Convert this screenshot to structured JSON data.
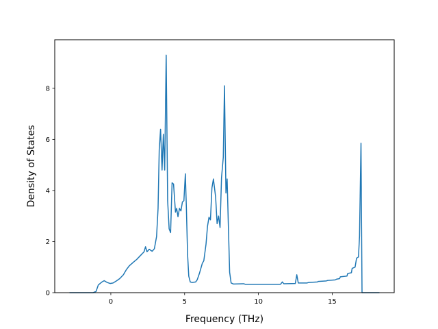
{
  "chart_data": {
    "type": "line",
    "title": "",
    "xlabel": "Frequency (THz)",
    "ylabel": "Density of States",
    "xlim": [
      -3.8,
      19.2
    ],
    "ylim": [
      0,
      9.9
    ],
    "x_ticks": [
      0,
      5,
      10,
      15
    ],
    "y_ticks": [
      0,
      2,
      4,
      6,
      8
    ],
    "grid": false,
    "legend": "none",
    "series": [
      {
        "color": "#1f77b4",
        "points": [
          [
            -2.8,
            0.0
          ],
          [
            -1.2,
            0.0
          ],
          [
            -1.0,
            0.05
          ],
          [
            -0.85,
            0.3
          ],
          [
            -0.6,
            0.42
          ],
          [
            -0.45,
            0.47
          ],
          [
            -0.25,
            0.4
          ],
          [
            -0.05,
            0.36
          ],
          [
            0.15,
            0.38
          ],
          [
            0.35,
            0.45
          ],
          [
            0.6,
            0.55
          ],
          [
            0.85,
            0.7
          ],
          [
            1.05,
            0.9
          ],
          [
            1.25,
            1.05
          ],
          [
            1.5,
            1.18
          ],
          [
            1.75,
            1.3
          ],
          [
            2.0,
            1.45
          ],
          [
            2.25,
            1.6
          ],
          [
            2.35,
            1.8
          ],
          [
            2.45,
            1.6
          ],
          [
            2.6,
            1.7
          ],
          [
            2.8,
            1.62
          ],
          [
            2.95,
            1.72
          ],
          [
            3.1,
            2.2
          ],
          [
            3.2,
            3.3
          ],
          [
            3.28,
            5.6
          ],
          [
            3.37,
            6.4
          ],
          [
            3.47,
            4.8
          ],
          [
            3.56,
            6.2
          ],
          [
            3.65,
            4.8
          ],
          [
            3.75,
            9.3
          ],
          [
            3.85,
            3.6
          ],
          [
            3.95,
            2.5
          ],
          [
            4.05,
            2.35
          ],
          [
            4.15,
            4.3
          ],
          [
            4.25,
            4.25
          ],
          [
            4.38,
            3.15
          ],
          [
            4.46,
            3.3
          ],
          [
            4.55,
            2.97
          ],
          [
            4.65,
            3.3
          ],
          [
            4.75,
            3.2
          ],
          [
            4.85,
            3.55
          ],
          [
            4.95,
            3.6
          ],
          [
            5.05,
            4.65
          ],
          [
            5.12,
            3.3
          ],
          [
            5.2,
            1.5
          ],
          [
            5.28,
            0.65
          ],
          [
            5.38,
            0.42
          ],
          [
            5.5,
            0.4
          ],
          [
            5.75,
            0.42
          ],
          [
            5.85,
            0.5
          ],
          [
            6.0,
            0.75
          ],
          [
            6.2,
            1.15
          ],
          [
            6.3,
            1.25
          ],
          [
            6.45,
            1.9
          ],
          [
            6.55,
            2.6
          ],
          [
            6.65,
            2.95
          ],
          [
            6.75,
            2.85
          ],
          [
            6.85,
            4.1
          ],
          [
            6.95,
            4.45
          ],
          [
            7.1,
            3.75
          ],
          [
            7.2,
            2.7
          ],
          [
            7.3,
            3.0
          ],
          [
            7.4,
            2.55
          ],
          [
            7.5,
            4.5
          ],
          [
            7.62,
            5.3
          ],
          [
            7.7,
            8.1
          ],
          [
            7.8,
            3.9
          ],
          [
            7.88,
            4.45
          ],
          [
            7.97,
            2.5
          ],
          [
            8.05,
            0.8
          ],
          [
            8.15,
            0.38
          ],
          [
            8.3,
            0.34
          ],
          [
            9.0,
            0.35
          ],
          [
            9.1,
            0.33
          ],
          [
            11.5,
            0.33
          ],
          [
            11.62,
            0.42
          ],
          [
            11.72,
            0.35
          ],
          [
            12.5,
            0.36
          ],
          [
            12.6,
            0.7
          ],
          [
            12.7,
            0.38
          ],
          [
            13.3,
            0.38
          ],
          [
            13.4,
            0.4
          ],
          [
            14.0,
            0.42
          ],
          [
            14.05,
            0.44
          ],
          [
            14.6,
            0.46
          ],
          [
            14.7,
            0.48
          ],
          [
            15.2,
            0.5
          ],
          [
            15.3,
            0.53
          ],
          [
            15.5,
            0.55
          ],
          [
            15.55,
            0.62
          ],
          [
            16.0,
            0.65
          ],
          [
            16.05,
            0.75
          ],
          [
            16.3,
            0.78
          ],
          [
            16.35,
            0.95
          ],
          [
            16.55,
            1.0
          ],
          [
            16.65,
            1.35
          ],
          [
            16.78,
            1.4
          ],
          [
            16.85,
            2.2
          ],
          [
            16.95,
            5.85
          ],
          [
            17.02,
            0.0
          ],
          [
            18.2,
            0.0
          ]
        ]
      }
    ]
  }
}
